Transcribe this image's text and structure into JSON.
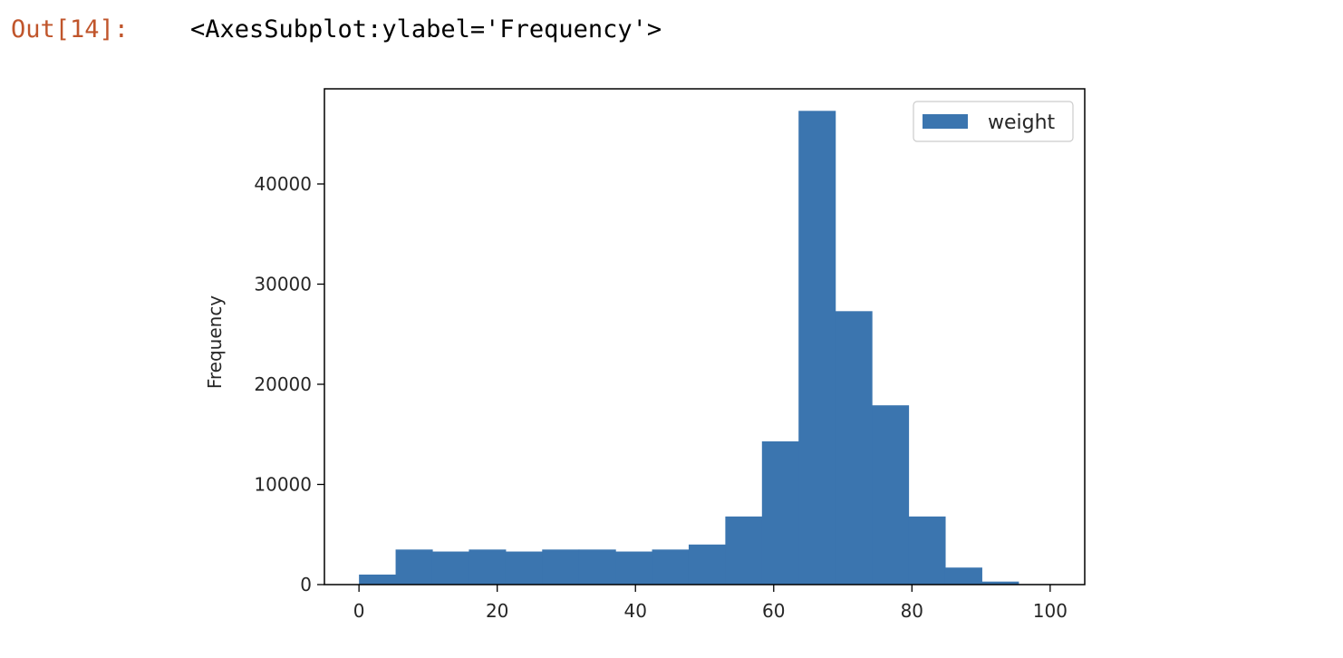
{
  "cell": {
    "prompt": "Out[14]:",
    "output_text": "<AxesSubplot:ylabel='Frequency'>"
  },
  "colors": {
    "prompt": "#c0552b",
    "bar": "#3b75af",
    "axis": "#000000"
  },
  "chart_data": {
    "type": "bar",
    "title": "",
    "xlabel": "",
    "ylabel": "Frequency",
    "legend": {
      "entries": [
        "weight"
      ],
      "placement": "top-right"
    },
    "grid": false,
    "xlim": [
      -5,
      105
    ],
    "ylim": [
      0,
      49500
    ],
    "xticks": [
      0,
      20,
      40,
      60,
      80,
      100
    ],
    "yticks": [
      0,
      10000,
      20000,
      30000,
      40000
    ],
    "bin_edges": [
      0,
      5.3,
      10.6,
      15.9,
      21.2,
      26.5,
      31.8,
      37.1,
      42.4,
      47.7,
      53.0,
      58.3,
      63.6,
      68.9,
      74.2,
      79.5,
      84.8,
      90.1,
      95.4,
      100.7
    ],
    "series": [
      {
        "name": "weight",
        "values": [
          1000,
          3500,
          3300,
          3500,
          3300,
          3500,
          3500,
          3300,
          3500,
          4000,
          6800,
          14300,
          47300,
          27300,
          17900,
          6800,
          1700,
          300,
          50
        ]
      }
    ]
  }
}
